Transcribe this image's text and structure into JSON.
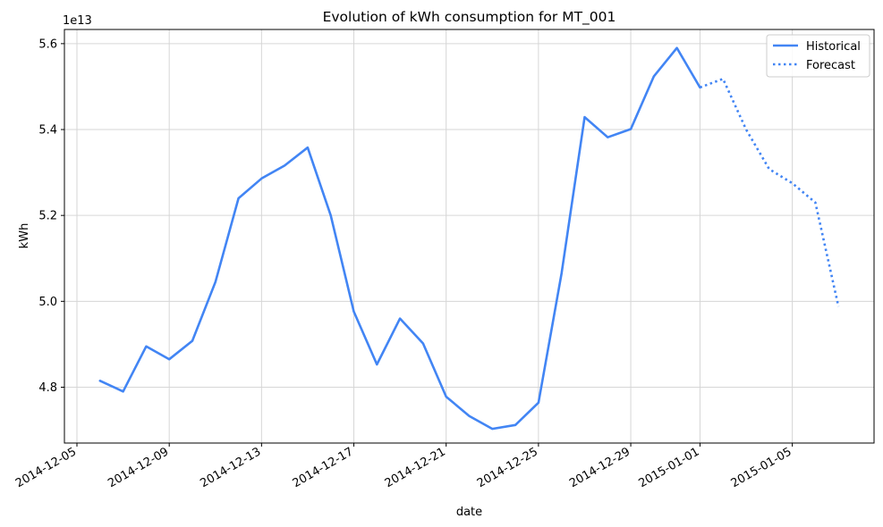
{
  "chart_data": {
    "type": "line",
    "title": "Evolution of kWh consumption for MT_001",
    "xlabel": "date",
    "ylabel": "kWh",
    "y_multiplier_label": "1e13",
    "ylim": [
      4.67,
      5.633
    ],
    "xlim": [
      "2014-12-05",
      "2015-01-08"
    ],
    "y_ticks": [
      4.8,
      5.0,
      5.2,
      5.4,
      5.6
    ],
    "y_tick_labels": [
      "4.8",
      "5.0",
      "5.2",
      "5.4",
      "5.6"
    ],
    "x_ticks": [
      "2014-12-05",
      "2014-12-09",
      "2014-12-13",
      "2014-12-17",
      "2014-12-21",
      "2014-12-25",
      "2014-12-29",
      "2015-01-01",
      "2015-01-05"
    ],
    "x_tick_labels": [
      "2014-12-05",
      "2014-12-09",
      "2014-12-13",
      "2014-12-17",
      "2014-12-21",
      "2014-12-25",
      "2014-12-29",
      "2015-01-01",
      "2015-01-05"
    ],
    "grid": true,
    "legend_position": "top-right",
    "series": [
      {
        "name": "Historical",
        "style": "solid",
        "color": "#4285f4",
        "x": [
          "2014-12-06",
          "2014-12-07",
          "2014-12-08",
          "2014-12-09",
          "2014-12-10",
          "2014-12-11",
          "2014-12-12",
          "2014-12-13",
          "2014-12-14",
          "2014-12-15",
          "2014-12-16",
          "2014-12-17",
          "2014-12-18",
          "2014-12-19",
          "2014-12-20",
          "2014-12-21",
          "2014-12-22",
          "2014-12-23",
          "2014-12-24",
          "2014-12-25",
          "2014-12-26",
          "2014-12-27",
          "2014-12-28",
          "2014-12-29",
          "2014-12-30",
          "2014-12-31",
          "2015-01-01"
        ],
        "values": [
          4.815,
          4.79,
          4.895,
          4.865,
          4.908,
          5.045,
          5.24,
          5.286,
          5.316,
          5.358,
          5.2,
          4.976,
          4.853,
          4.96,
          4.902,
          4.778,
          4.733,
          4.703,
          4.712,
          4.764,
          5.065,
          5.429,
          5.382,
          5.401,
          5.524,
          5.59,
          5.498
        ]
      },
      {
        "name": "Forecast",
        "style": "dotted",
        "color": "#4285f4",
        "x": [
          "2015-01-01",
          "2015-01-02",
          "2015-01-03",
          "2015-01-04",
          "2015-01-05",
          "2015-01-06",
          "2015-01-07"
        ],
        "values": [
          5.498,
          5.518,
          5.4,
          5.308,
          5.275,
          5.23,
          4.988
        ]
      }
    ]
  }
}
